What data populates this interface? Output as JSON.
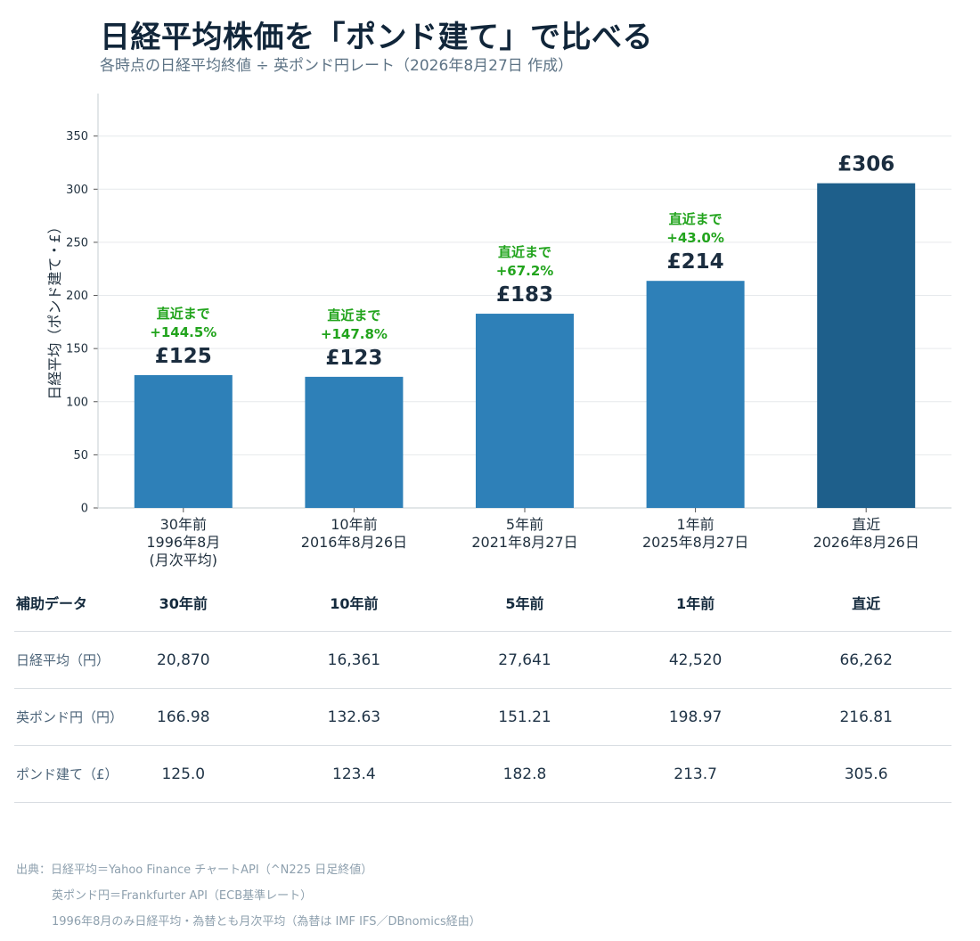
{
  "title": "日経平均株価を「ポンド建て」で比べる",
  "subtitle": "各時点の日経平均終値 ÷ 英ポンド円レート（2026年8月27日 作成）",
  "colors": {
    "bar": "#2e80b8",
    "bar_highlight": "#1e5f8b",
    "annotation": "#22a41d"
  },
  "chart_data": {
    "type": "bar",
    "ylabel": "日経平均（ポンド建て・£）",
    "ylim": [
      0,
      390
    ],
    "yticks": [
      0,
      50,
      100,
      150,
      200,
      250,
      300,
      350
    ],
    "grid": true,
    "categories": [
      [
        "30年前",
        "1996年8月",
        "(月次平均)"
      ],
      [
        "10年前",
        "2016年8月26日"
      ],
      [
        "5年前",
        "2021年8月27日"
      ],
      [
        "1年前",
        "2025年8月27日"
      ],
      [
        "直近",
        "2026年8月26日"
      ]
    ],
    "values": [
      125.0,
      123.4,
      182.8,
      213.7,
      305.6
    ],
    "value_labels": [
      "£125",
      "£123",
      "£183",
      "£214",
      "£306"
    ],
    "annotations": [
      [
        "直近まで",
        "+144.5%"
      ],
      [
        "直近まで",
        "+147.8%"
      ],
      [
        "直近まで",
        "+67.2%"
      ],
      [
        "直近まで",
        "+43.0%"
      ],
      null
    ],
    "highlight_index": 4
  },
  "table": {
    "header": [
      "補助データ",
      "30年前",
      "10年前",
      "5年前",
      "1年前",
      "直近"
    ],
    "rows": [
      {
        "label": "日経平均（円）",
        "values": [
          "20,870",
          "16,361",
          "27,641",
          "42,520",
          "66,262"
        ]
      },
      {
        "label": "英ポンド円（円）",
        "values": [
          "166.98",
          "132.63",
          "151.21",
          "198.97",
          "216.81"
        ]
      },
      {
        "label": "ポンド建て（£）",
        "values": [
          "125.0",
          "123.4",
          "182.8",
          "213.7",
          "305.6"
        ]
      }
    ]
  },
  "source": {
    "line1": "出典：日経平均＝Yahoo Finance チャートAPI（^N225 日足終値）",
    "line2": "英ポンド円＝Frankfurter API（ECB基準レート）",
    "line3": "1996年8月のみ日経平均・為替とも月次平均（為替は IMF IFS／DBnomics経由）"
  }
}
